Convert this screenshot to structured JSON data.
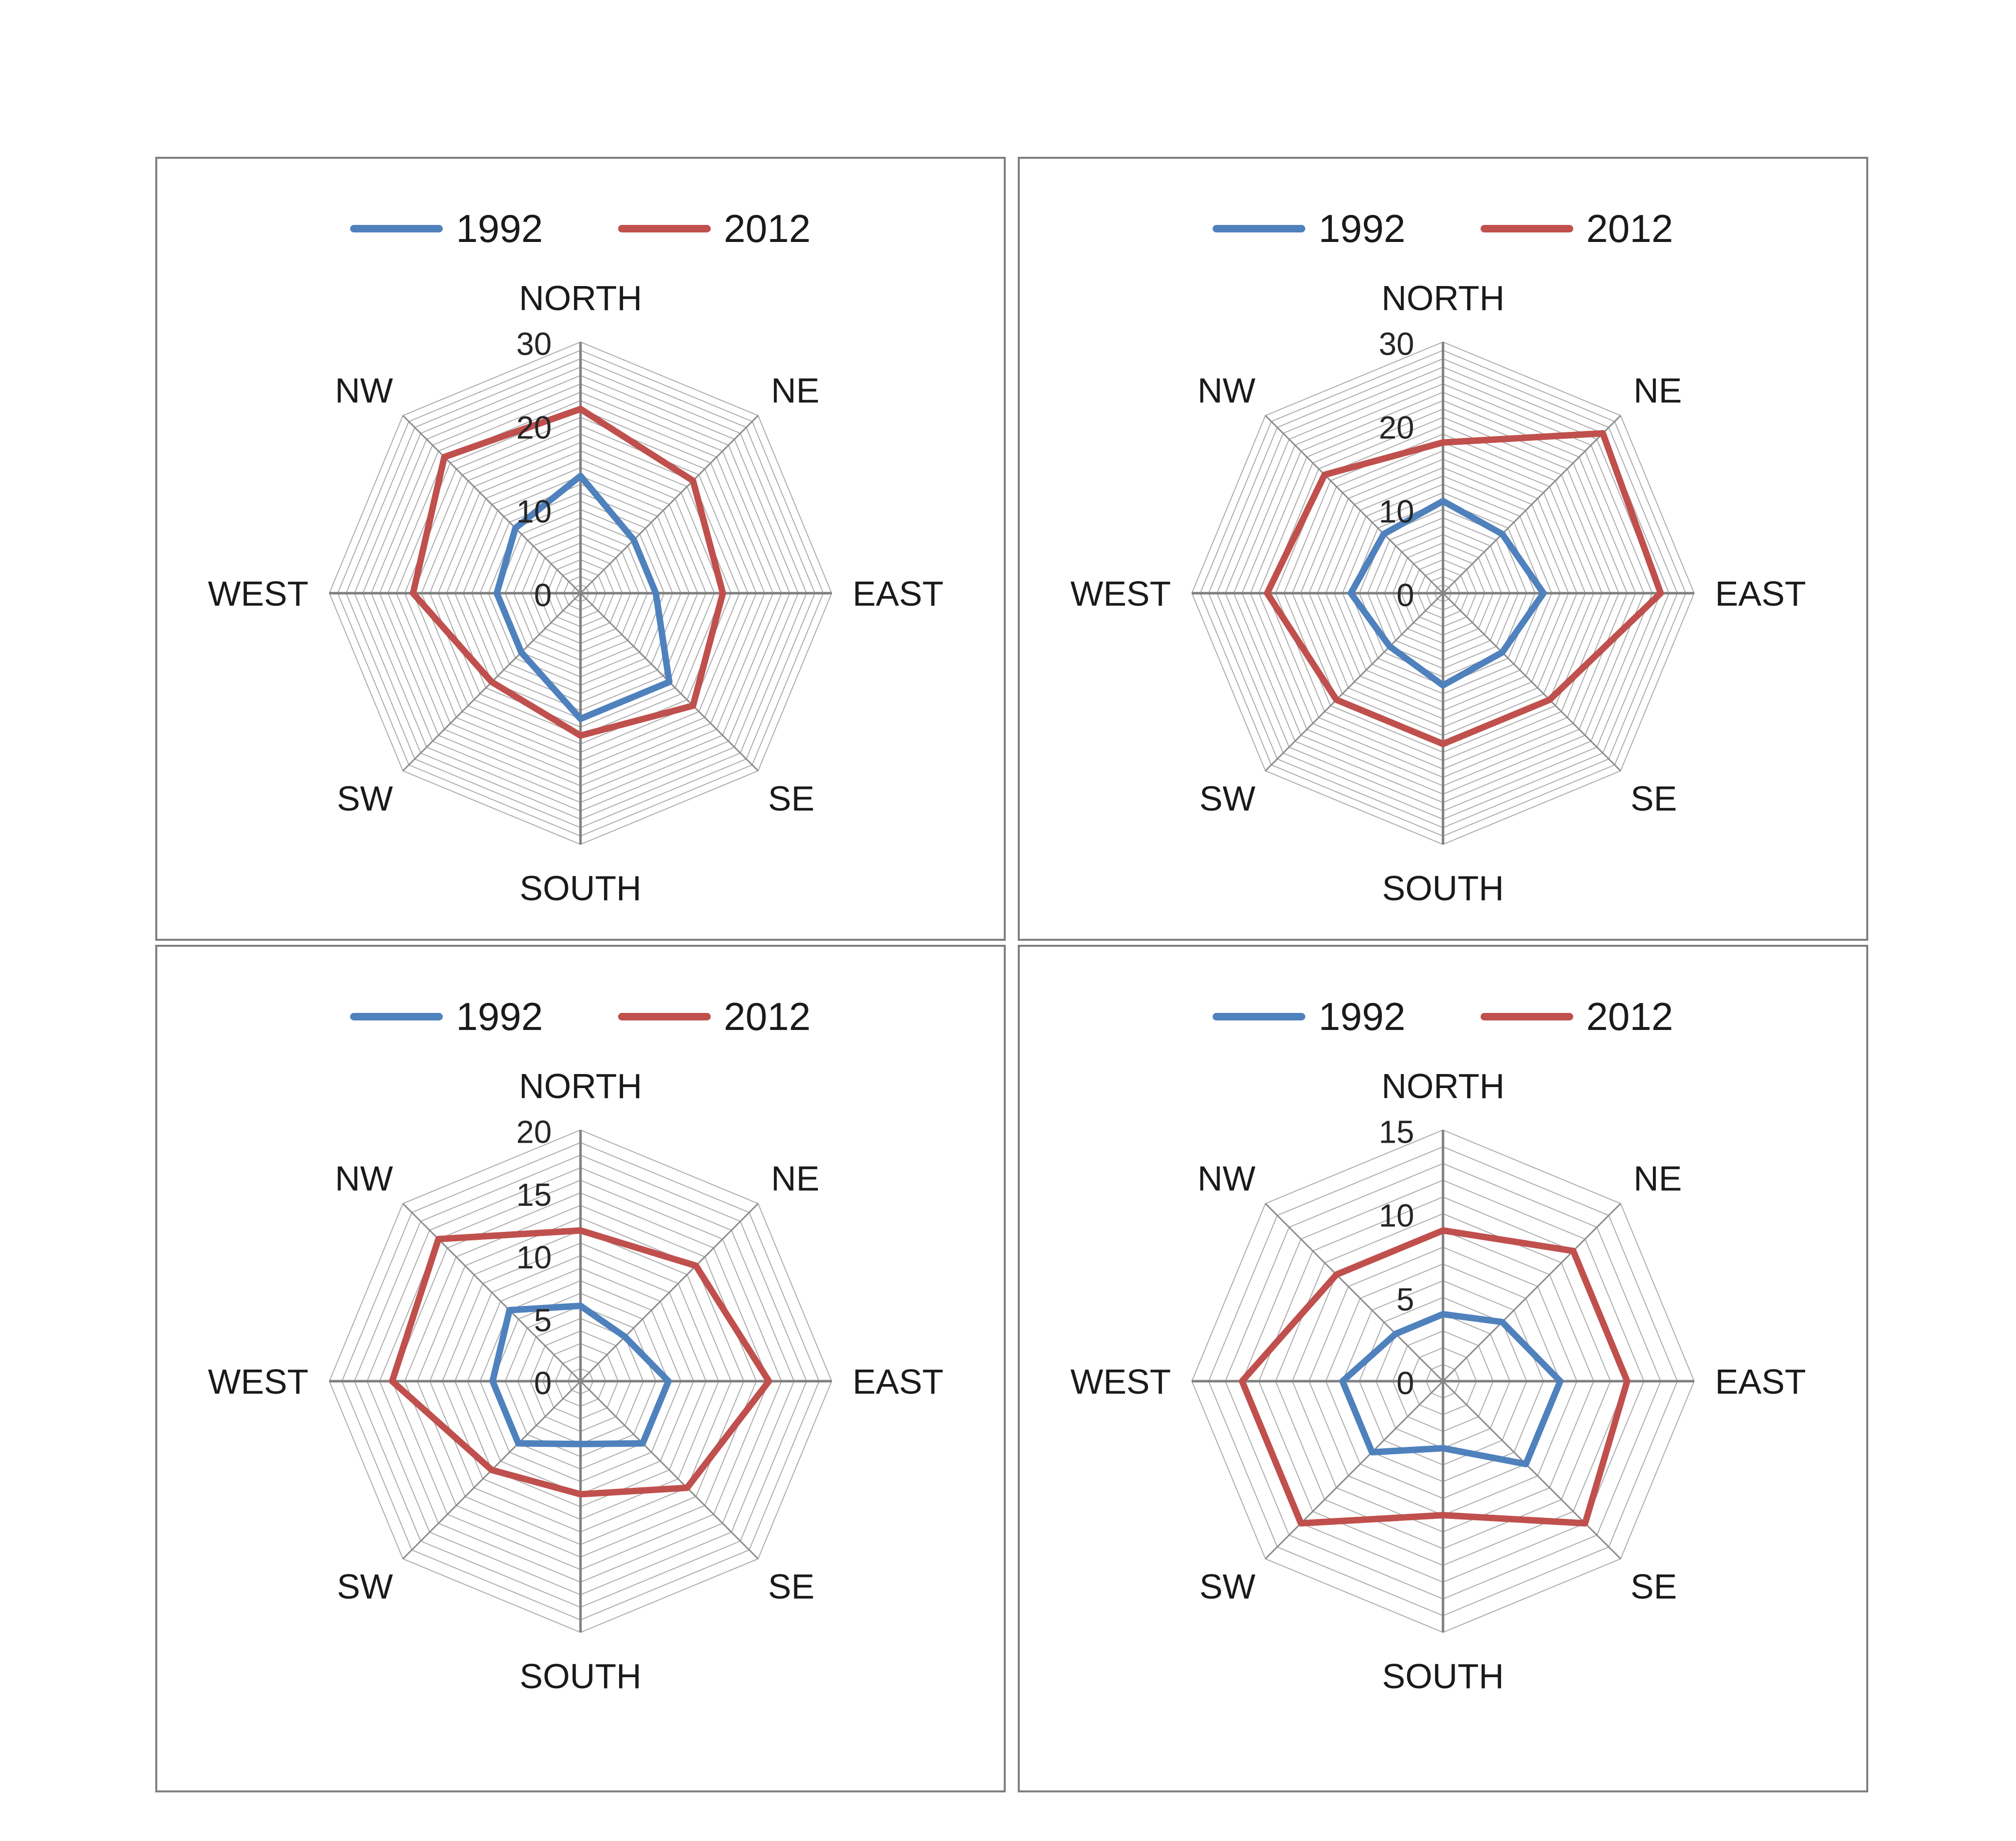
{
  "colors": {
    "series_1992": "#4F81BD",
    "series_2012": "#C0504D",
    "ring": "#ADADAD",
    "spoke": "#8C8C8C",
    "main_axis": "#808080",
    "direction_label": "#1A1A1A",
    "tick_label": "#262626",
    "panel_border": "#808080",
    "background": "#FFFFFF"
  },
  "legend": {
    "item_1992": "1992",
    "item_2012": "2012"
  },
  "directions": [
    "NORTH",
    "NE",
    "EAST",
    "SE",
    "SOUTH",
    "SW",
    "WEST",
    "NW"
  ],
  "chart_data": [
    {
      "id": "top-left",
      "type": "radar",
      "categories": [
        "NORTH",
        "NE",
        "EAST",
        "SE",
        "SOUTH",
        "SW",
        "WEST",
        "NW"
      ],
      "axis_max": 30,
      "axis_ticks": [
        0,
        10,
        20,
        30
      ],
      "ring_step": 1,
      "legend_entries": [
        "1992",
        "2012"
      ],
      "series": [
        {
          "name": "1992",
          "values": [
            14,
            9,
            9,
            15,
            15,
            10,
            10,
            11
          ]
        },
        {
          "name": "2012",
          "values": [
            22,
            19,
            17,
            19,
            17,
            15,
            20,
            23
          ]
        }
      ]
    },
    {
      "id": "top-right",
      "type": "radar",
      "categories": [
        "NORTH",
        "NE",
        "EAST",
        "SE",
        "SOUTH",
        "SW",
        "WEST",
        "NW"
      ],
      "axis_max": 30,
      "axis_ticks": [
        0,
        10,
        20,
        30
      ],
      "ring_step": 1,
      "legend_entries": [
        "1992",
        "2012"
      ],
      "series": [
        {
          "name": "1992",
          "values": [
            11,
            10,
            12,
            10,
            11,
            9,
            11,
            10
          ]
        },
        {
          "name": "2012",
          "values": [
            18,
            27,
            26,
            18,
            18,
            18,
            21,
            20
          ]
        }
      ]
    },
    {
      "id": "bottom-left",
      "type": "radar",
      "categories": [
        "NORTH",
        "NE",
        "EAST",
        "SE",
        "SOUTH",
        "SW",
        "WEST",
        "NW"
      ],
      "axis_max": 20,
      "axis_ticks": [
        0,
        5,
        10,
        15,
        20
      ],
      "ring_step": 1,
      "legend_entries": [
        "1992",
        "2012"
      ],
      "series": [
        {
          "name": "1992",
          "values": [
            6,
            5,
            7,
            7,
            5,
            7,
            7,
            8
          ]
        },
        {
          "name": "2012",
          "values": [
            12,
            13,
            15,
            12,
            9,
            10,
            15,
            16
          ]
        }
      ]
    },
    {
      "id": "bottom-right",
      "type": "radar",
      "categories": [
        "NORTH",
        "NE",
        "EAST",
        "SE",
        "SOUTH",
        "SW",
        "WEST",
        "NW"
      ],
      "axis_max": 15,
      "axis_ticks": [
        0,
        5,
        10,
        15
      ],
      "ring_step": 1,
      "legend_entries": [
        "1992",
        "2012"
      ],
      "series": [
        {
          "name": "1992",
          "values": [
            4,
            5,
            7,
            7,
            4,
            6,
            6,
            4
          ]
        },
        {
          "name": "2012",
          "values": [
            9,
            11,
            11,
            12,
            8,
            12,
            12,
            9
          ]
        }
      ]
    }
  ]
}
